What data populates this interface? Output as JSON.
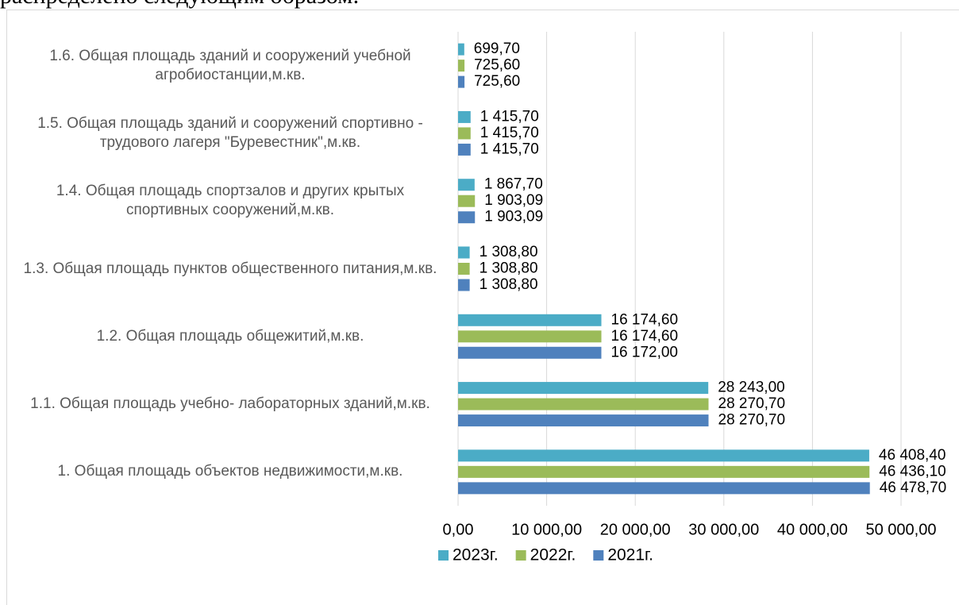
{
  "caption": "распределено следующим образом:",
  "chart_data": {
    "type": "hbar",
    "categories": [
      "1. Общая площадь объектов недвижимости,м.кв.",
      "1.1. Общая площадь учебно- лабораторных зданий,м.кв.",
      "1.2.  Общая площадь общежитий,м.кв.",
      "1.3. Общая площадь пунктов общественного питания,м.кв.",
      "1.4. Общая площадь спортзалов и других крытых спортивных сооружений,м.кв.",
      "1.5. Общая площадь зданий и сооружений спортивно - трудового лагеря \"Буревестник\",м.кв.",
      "1.6. Общая площадь зданий и сооружений учебной агробиостанции,м.кв."
    ],
    "series": [
      {
        "name": "2023г.",
        "color": "#4bacc6",
        "values": [
          46408.4,
          28243,
          16174.6,
          1308.8,
          1867.7,
          1415.7,
          699.7
        ],
        "value_labels": [
          "46 408,40",
          "28 243,00",
          "16 174,60",
          "1 308,80",
          "1 867,70",
          "1 415,70",
          "699,70"
        ]
      },
      {
        "name": "2022г.",
        "color": "#9bbb59",
        "values": [
          46436.1,
          28270.7,
          16174.6,
          1308.8,
          1903.09,
          1415.7,
          725.6
        ],
        "value_labels": [
          "46 436,10",
          "28 270,70",
          "16 174,60",
          "1 308,80",
          "1 903,09",
          "1 415,70",
          "725,60"
        ]
      },
      {
        "name": "2021г.",
        "color": "#4f81bd",
        "values": [
          46478.7,
          28270.7,
          16172,
          1308.8,
          1903.09,
          1415.7,
          725.6
        ],
        "value_labels": [
          "46 478,70",
          "28 270,70",
          "16 172,00",
          "1 308,80",
          "1 903,09",
          "1 415,70",
          "725,60"
        ]
      }
    ],
    "xlim": [
      0,
      50000
    ],
    "xticks": [
      {
        "value": 0,
        "label": "0,00"
      },
      {
        "value": 10000,
        "label": "10 000,00"
      },
      {
        "value": 20000,
        "label": "20 000,00"
      },
      {
        "value": 30000,
        "label": "30 000,00"
      },
      {
        "value": 40000,
        "label": "40 000,00"
      },
      {
        "value": 50000,
        "label": "50 000,00"
      }
    ],
    "grid": true,
    "legend": "bottom"
  }
}
